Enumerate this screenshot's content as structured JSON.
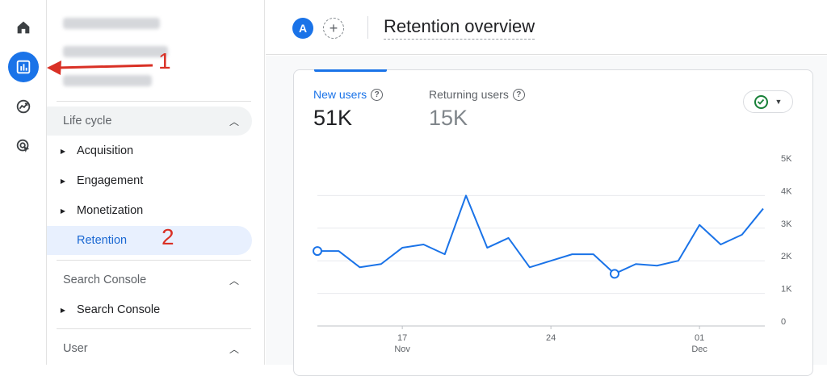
{
  "header": {
    "avatar_letter": "A",
    "add_symbol": "+",
    "title": "Retention overview"
  },
  "rail": {
    "items": [
      "home-icon",
      "reports-icon",
      "explore-icon",
      "advertising-icon"
    ],
    "active": "reports-icon"
  },
  "sidenav": {
    "sections": [
      {
        "title": "Life cycle",
        "items": [
          {
            "label": "Acquisition"
          },
          {
            "label": "Engagement"
          },
          {
            "label": "Monetization"
          },
          {
            "label": "Retention",
            "selected": true
          }
        ]
      },
      {
        "title": "Search Console",
        "items": [
          {
            "label": "Search Console"
          }
        ]
      },
      {
        "title": "User",
        "items": []
      }
    ]
  },
  "card": {
    "metrics": [
      {
        "label": "New users",
        "value": "51K",
        "active": true
      },
      {
        "label": "Returning users",
        "value": "15K",
        "active": false
      }
    ],
    "help_symbol": "?"
  },
  "annotations": {
    "one": "1",
    "two": "2"
  },
  "colors": {
    "accent": "#1a73e8",
    "annotation": "#d93025",
    "check": "#188038"
  },
  "chart_data": {
    "type": "line",
    "y_ticks": [
      "5K",
      "4K",
      "3K",
      "2K",
      "1K",
      "0"
    ],
    "ylim": [
      0,
      5000
    ],
    "x_ticks": [
      {
        "day": "17",
        "month": "Nov",
        "index": 4
      },
      {
        "day": "24",
        "month": "",
        "index": 11
      },
      {
        "day": "01",
        "month": "Dec",
        "index": 18
      }
    ],
    "series": [
      {
        "values": [
          2300,
          2300,
          1800,
          1900,
          2400,
          2500,
          2200,
          4000,
          2400,
          2700,
          1800,
          2000,
          2200,
          2200,
          1600,
          1900,
          1850,
          2000,
          3100,
          2500,
          2800,
          3600
        ],
        "markers": [
          0,
          14
        ]
      }
    ]
  }
}
